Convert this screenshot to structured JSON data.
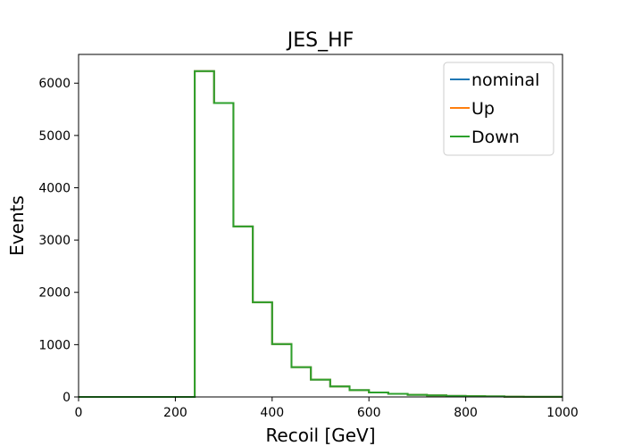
{
  "chart_data": {
    "type": "line",
    "drawstyle": "steps",
    "title": "JES_HF",
    "xlabel": "Recoil [GeV]",
    "ylabel": "Events",
    "xlim": [
      0,
      1000
    ],
    "ylim": [
      0,
      6550
    ],
    "xticks": [
      0,
      200,
      400,
      600,
      800,
      1000
    ],
    "yticks": [
      0,
      1000,
      2000,
      3000,
      4000,
      5000,
      6000
    ],
    "grid": false,
    "legend_position": "top-right",
    "bin_edges": [
      0,
      40,
      80,
      120,
      160,
      200,
      240,
      280,
      320,
      360,
      400,
      440,
      480,
      520,
      560,
      600,
      640,
      680,
      720,
      760,
      800,
      840,
      880,
      920,
      960,
      1000
    ],
    "series": [
      {
        "name": "nominal",
        "color": "#1f77b4",
        "values": [
          0,
          0,
          0,
          0,
          0,
          0,
          6230,
          5620,
          3260,
          1810,
          1010,
          570,
          330,
          200,
          130,
          85,
          60,
          40,
          30,
          20,
          15,
          10,
          5,
          3,
          2
        ]
      },
      {
        "name": "Up",
        "color": "#ff7f0e",
        "values": [
          0,
          0,
          0,
          0,
          0,
          0,
          6230,
          5620,
          3260,
          1810,
          1010,
          570,
          330,
          200,
          130,
          85,
          60,
          40,
          30,
          20,
          15,
          10,
          5,
          3,
          2
        ]
      },
      {
        "name": "Down",
        "color": "#2ca02c",
        "values": [
          0,
          0,
          0,
          0,
          0,
          0,
          6230,
          5620,
          3260,
          1810,
          1010,
          570,
          330,
          200,
          130,
          85,
          60,
          40,
          30,
          20,
          15,
          10,
          5,
          3,
          2
        ]
      }
    ]
  }
}
